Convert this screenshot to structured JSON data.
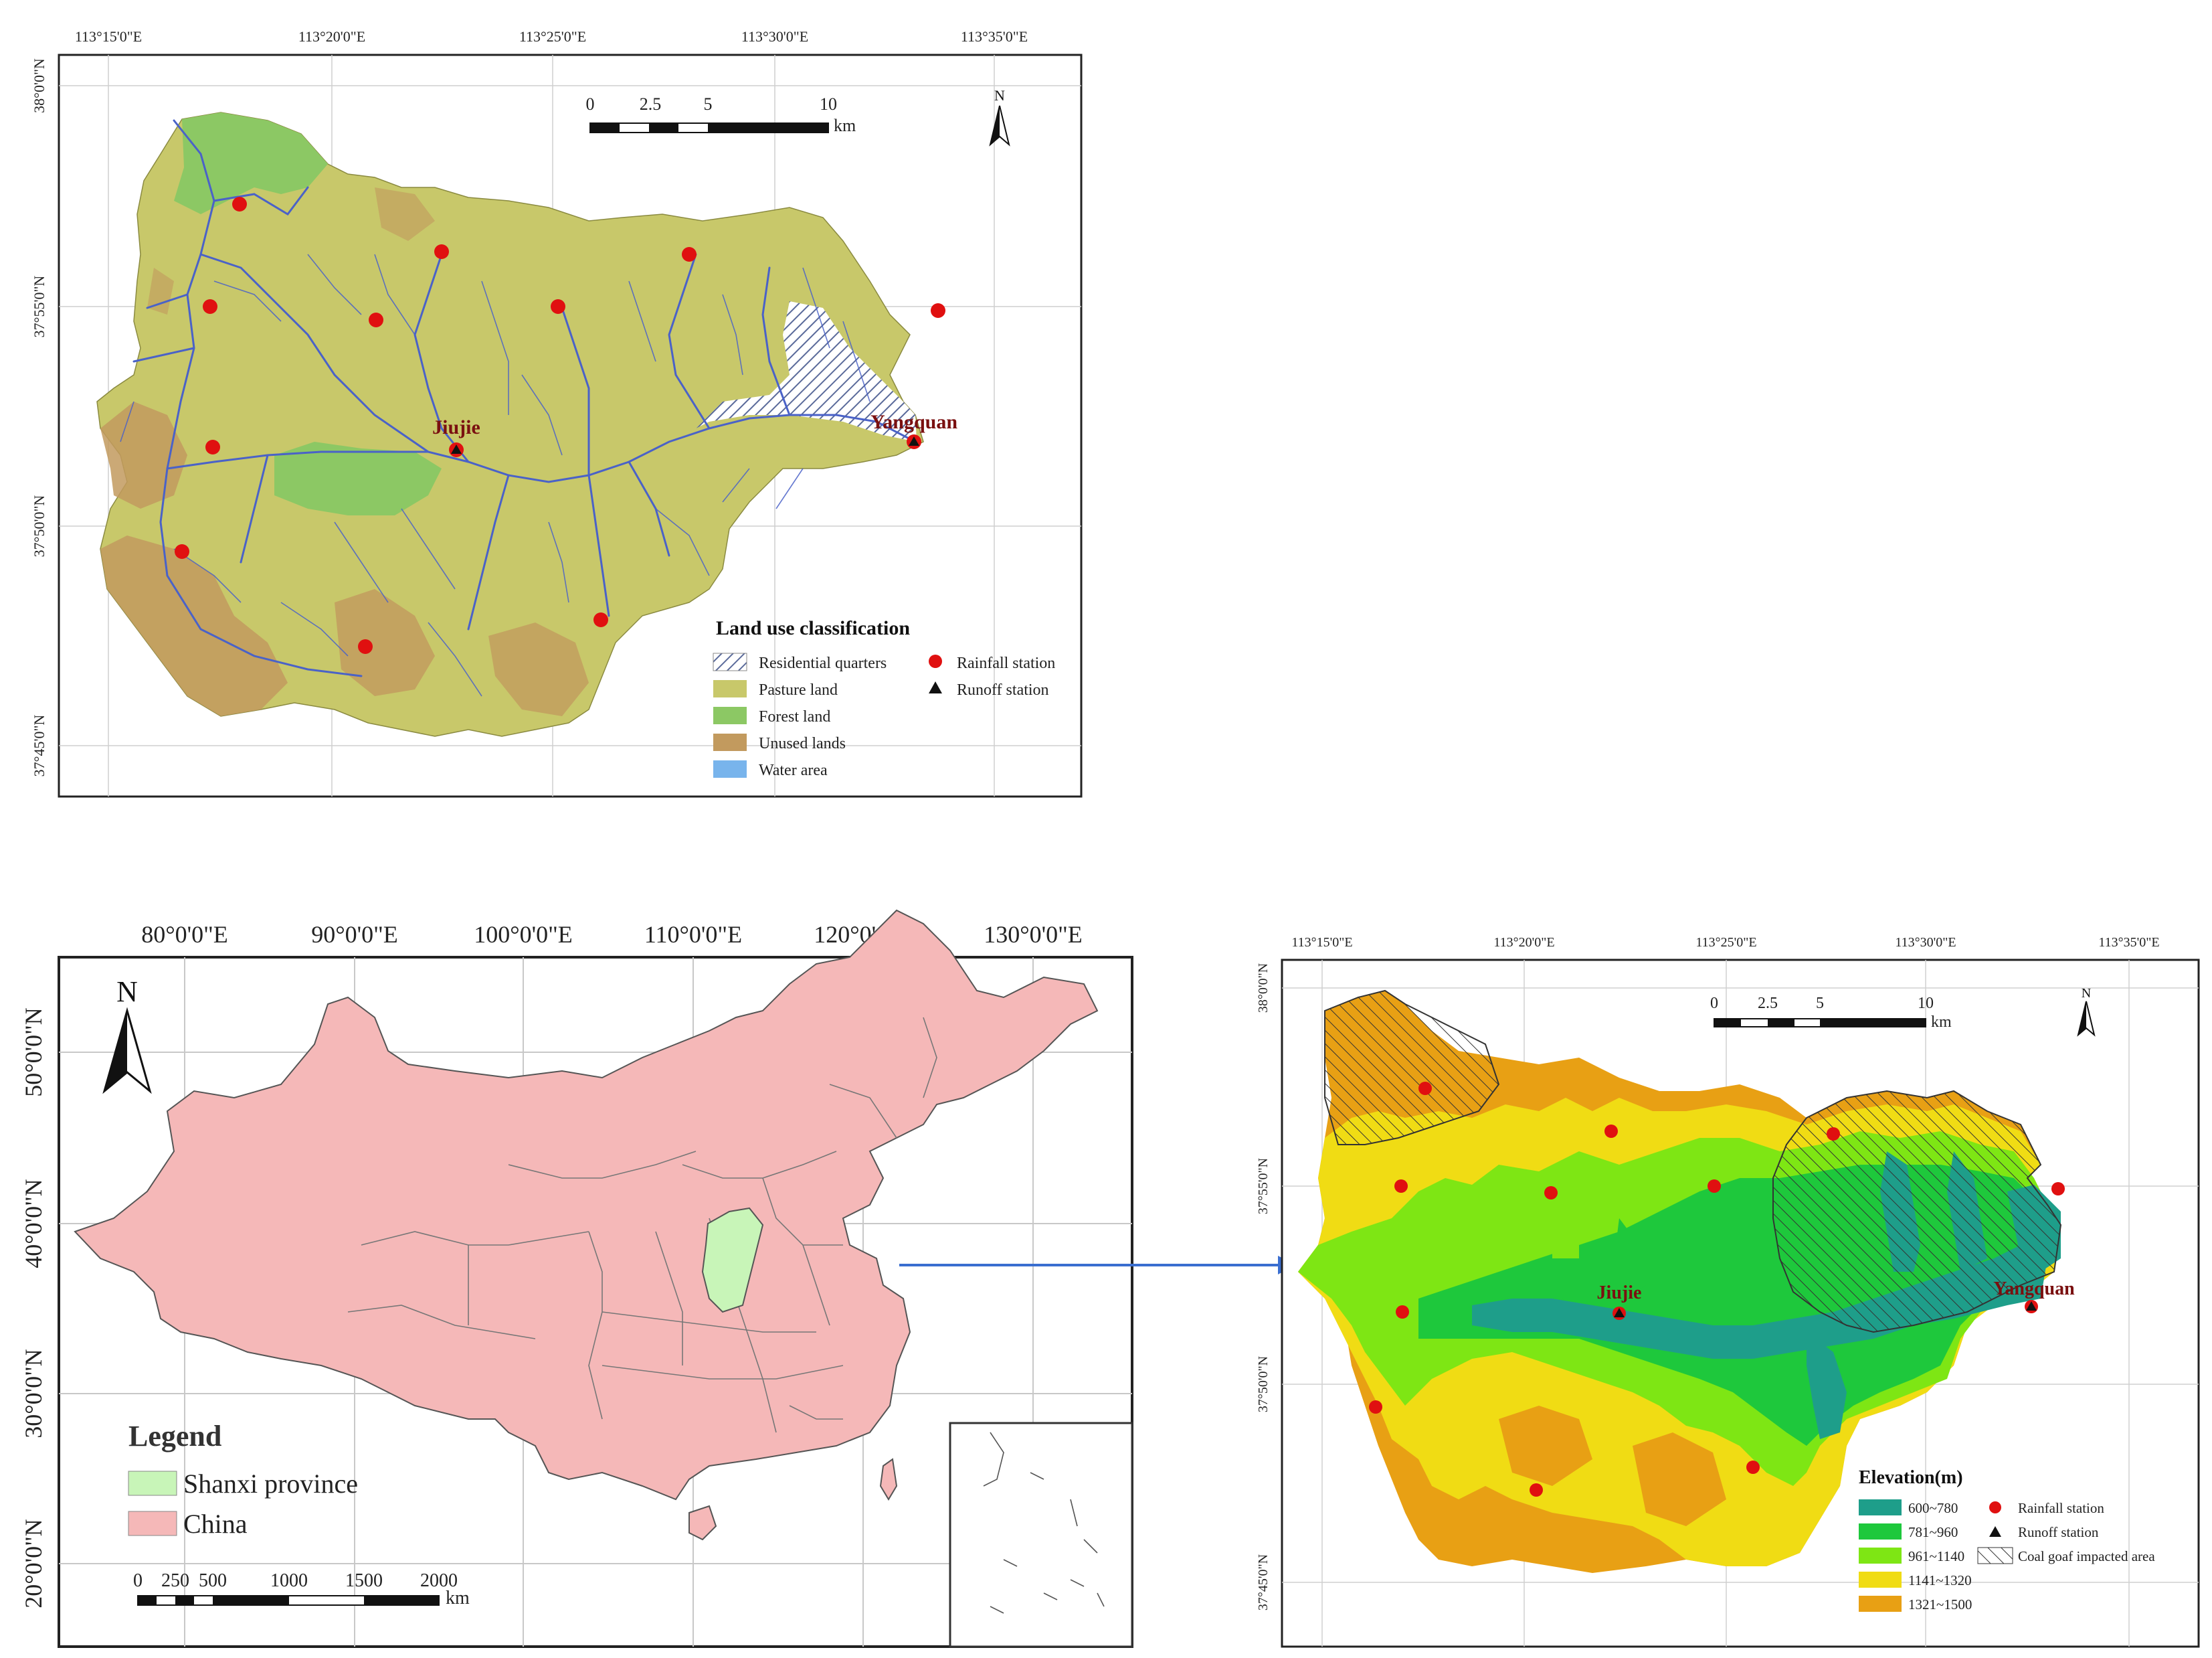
{
  "map_top": {
    "top_ticks": [
      "113°15'0\"E",
      "113°20'0\"E",
      "113°25'0\"E",
      "113°30'0\"E",
      "113°35'0\"E"
    ],
    "left_ticks": [
      "38°0'0\"N",
      "37°55'0\"N",
      "37°50'0\"N",
      "37°45'0\"N"
    ],
    "scale_labels": [
      "0",
      "2.5",
      "5",
      "10"
    ],
    "scale_unit": "km",
    "north": "N",
    "stations": {
      "jiujie": "Jiujie",
      "yangquan": "Yangquan"
    },
    "legend": {
      "title": "Land use classification",
      "items": [
        "Residential quarters",
        "Pasture land",
        "Forest land",
        "Unused lands",
        "Water area"
      ],
      "symbols": [
        "Rainfall station",
        "Runoff station"
      ]
    },
    "colors": {
      "pasture": "#c8c86a",
      "forest": "#8cc864",
      "unused": "#c29a5e",
      "water": "#78b4ec",
      "river": "#4a62c8",
      "station": "#e01010"
    }
  },
  "map_china": {
    "top_ticks": [
      "80°0'0\"E",
      "90°0'0\"E",
      "100°0'0\"E",
      "110°0'0\"E",
      "120°0'0\"E",
      "130°0'0\"E"
    ],
    "left_ticks": [
      "50°0'0\"N",
      "40°0'0\"N",
      "30°0'0\"N",
      "20°0'0\"N"
    ],
    "north": "N",
    "legend": {
      "title": "Legend",
      "items": [
        "Shanxi province",
        "China"
      ]
    },
    "scale_labels": [
      "0",
      "250",
      "500",
      "1000",
      "1500",
      "2000"
    ],
    "scale_unit": "km",
    "colors": {
      "china": "#f5b8b8",
      "shanxi": "#c8f5b8"
    }
  },
  "map_elev": {
    "top_ticks": [
      "113°15'0\"E",
      "113°20'0\"E",
      "113°25'0\"E",
      "113°30'0\"E",
      "113°35'0\"E"
    ],
    "left_ticks": [
      "38°0'0\"N",
      "37°55'0\"N",
      "37°50'0\"N",
      "37°45'0\"N"
    ],
    "scale_labels": [
      "0",
      "2.5",
      "5",
      "10"
    ],
    "scale_unit": "km",
    "north": "N",
    "stations": {
      "jiujie": "Jiujie",
      "yangquan": "Yangquan"
    },
    "legend": {
      "title": "Elevation(m)",
      "classes": [
        "600~780",
        "781~960",
        "961~1140",
        "1141~1320",
        "1321~1500"
      ],
      "symbols": [
        "Rainfall station",
        "Runoff station",
        "Coal goaf impacted area"
      ]
    },
    "colors": {
      "c1": "#1e9e8a",
      "c2": "#1ec83c",
      "c3": "#7ee614",
      "c4": "#f0dc14",
      "c5": "#e8a014"
    }
  }
}
